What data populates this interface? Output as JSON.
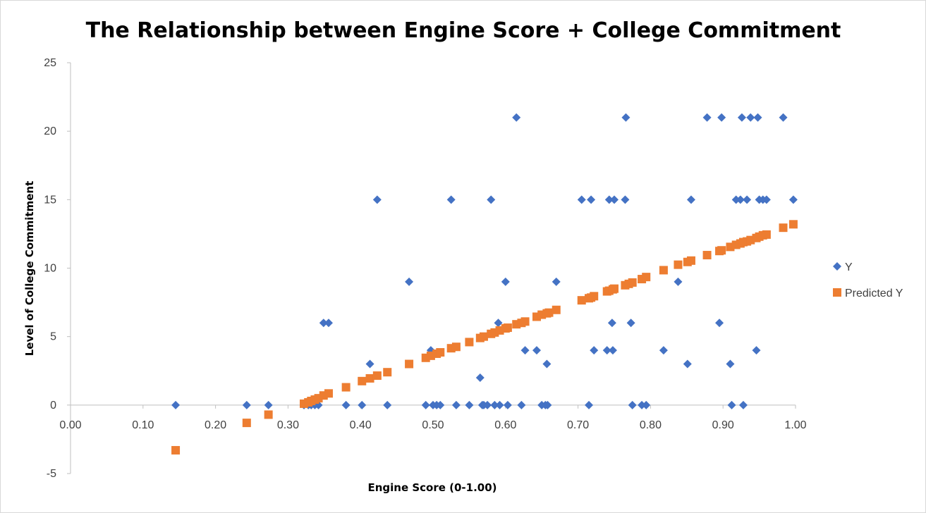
{
  "chart_data": {
    "type": "scatter",
    "title": "The Relationship between Engine Score + College Commitment",
    "xlabel": "Engine Score (0-1.00)",
    "ylabel": "Level of College Commitment",
    "xlim": [
      0,
      1
    ],
    "ylim": [
      -5,
      25
    ],
    "x_ticks": [
      "0.00",
      "0.10",
      "0.20",
      "0.30",
      "0.40",
      "0.50",
      "0.60",
      "0.70",
      "0.80",
      "0.90",
      "1.00"
    ],
    "y_ticks": [
      "-5",
      "0",
      "5",
      "10",
      "15",
      "20",
      "25"
    ],
    "grid": false,
    "legend_position": "right",
    "series": [
      {
        "name": "Y",
        "color": "#4472c4",
        "marker": "diamond",
        "points": [
          [
            0.145,
            0
          ],
          [
            0.243,
            0
          ],
          [
            0.273,
            0
          ],
          [
            0.322,
            0
          ],
          [
            0.328,
            0
          ],
          [
            0.332,
            0
          ],
          [
            0.337,
            0
          ],
          [
            0.342,
            0
          ],
          [
            0.349,
            6
          ],
          [
            0.356,
            6
          ],
          [
            0.38,
            0
          ],
          [
            0.402,
            0
          ],
          [
            0.413,
            3
          ],
          [
            0.423,
            15
          ],
          [
            0.437,
            0
          ],
          [
            0.467,
            9
          ],
          [
            0.49,
            0
          ],
          [
            0.497,
            4
          ],
          [
            0.5,
            0
          ],
          [
            0.505,
            0
          ],
          [
            0.51,
            0
          ],
          [
            0.525,
            15
          ],
          [
            0.532,
            0
          ],
          [
            0.55,
            0
          ],
          [
            0.565,
            2
          ],
          [
            0.568,
            0
          ],
          [
            0.57,
            0
          ],
          [
            0.575,
            0
          ],
          [
            0.58,
            15
          ],
          [
            0.585,
            0
          ],
          [
            0.59,
            6
          ],
          [
            0.592,
            0
          ],
          [
            0.6,
            9
          ],
          [
            0.603,
            0
          ],
          [
            0.615,
            21
          ],
          [
            0.622,
            0
          ],
          [
            0.627,
            4
          ],
          [
            0.643,
            4
          ],
          [
            0.65,
            0
          ],
          [
            0.655,
            0
          ],
          [
            0.657,
            3
          ],
          [
            0.658,
            0
          ],
          [
            0.67,
            9
          ],
          [
            0.705,
            15
          ],
          [
            0.715,
            0
          ],
          [
            0.718,
            15
          ],
          [
            0.722,
            4
          ],
          [
            0.74,
            4
          ],
          [
            0.743,
            15
          ],
          [
            0.747,
            6
          ],
          [
            0.748,
            4
          ],
          [
            0.75,
            15
          ],
          [
            0.765,
            15
          ],
          [
            0.766,
            21
          ],
          [
            0.773,
            6
          ],
          [
            0.775,
            0
          ],
          [
            0.788,
            0
          ],
          [
            0.794,
            0
          ],
          [
            0.838,
            9
          ],
          [
            0.818,
            4
          ],
          [
            0.851,
            3
          ],
          [
            0.856,
            15
          ],
          [
            0.878,
            21
          ],
          [
            0.895,
            6
          ],
          [
            0.898,
            21
          ],
          [
            0.91,
            3
          ],
          [
            0.912,
            0
          ],
          [
            0.918,
            15
          ],
          [
            0.924,
            15
          ],
          [
            0.926,
            21
          ],
          [
            0.928,
            0
          ],
          [
            0.933,
            15
          ],
          [
            0.938,
            21
          ],
          [
            0.946,
            4
          ],
          [
            0.948,
            21
          ],
          [
            0.95,
            15
          ],
          [
            0.955,
            15
          ],
          [
            0.96,
            15
          ],
          [
            0.983,
            21
          ],
          [
            0.997,
            15
          ]
        ]
      },
      {
        "name": "Predicted Y",
        "color": "#ed7d31",
        "marker": "square",
        "points": [
          [
            0.145,
            -3.3
          ],
          [
            0.243,
            -1.3
          ],
          [
            0.273,
            -0.7
          ],
          [
            0.322,
            0.1
          ],
          [
            0.328,
            0.2
          ],
          [
            0.332,
            0.3
          ],
          [
            0.337,
            0.4
          ],
          [
            0.342,
            0.5
          ],
          [
            0.349,
            0.7
          ],
          [
            0.356,
            0.85
          ],
          [
            0.38,
            1.3
          ],
          [
            0.402,
            1.75
          ],
          [
            0.413,
            1.95
          ],
          [
            0.423,
            2.15
          ],
          [
            0.437,
            2.4
          ],
          [
            0.467,
            3.0
          ],
          [
            0.49,
            3.45
          ],
          [
            0.497,
            3.6
          ],
          [
            0.505,
            3.75
          ],
          [
            0.51,
            3.85
          ],
          [
            0.525,
            4.15
          ],
          [
            0.532,
            4.25
          ],
          [
            0.55,
            4.6
          ],
          [
            0.565,
            4.9
          ],
          [
            0.57,
            5.0
          ],
          [
            0.58,
            5.2
          ],
          [
            0.585,
            5.3
          ],
          [
            0.592,
            5.45
          ],
          [
            0.6,
            5.6
          ],
          [
            0.603,
            5.65
          ],
          [
            0.615,
            5.9
          ],
          [
            0.622,
            6.0
          ],
          [
            0.627,
            6.1
          ],
          [
            0.643,
            6.45
          ],
          [
            0.65,
            6.6
          ],
          [
            0.657,
            6.7
          ],
          [
            0.66,
            6.75
          ],
          [
            0.67,
            6.95
          ],
          [
            0.705,
            7.65
          ],
          [
            0.715,
            7.8
          ],
          [
            0.718,
            7.85
          ],
          [
            0.722,
            7.95
          ],
          [
            0.74,
            8.3
          ],
          [
            0.743,
            8.35
          ],
          [
            0.748,
            8.45
          ],
          [
            0.75,
            8.5
          ],
          [
            0.765,
            8.75
          ],
          [
            0.77,
            8.85
          ],
          [
            0.775,
            8.95
          ],
          [
            0.788,
            9.2
          ],
          [
            0.794,
            9.35
          ],
          [
            0.818,
            9.85
          ],
          [
            0.838,
            10.25
          ],
          [
            0.851,
            10.45
          ],
          [
            0.856,
            10.55
          ],
          [
            0.878,
            10.95
          ],
          [
            0.895,
            11.25
          ],
          [
            0.898,
            11.3
          ],
          [
            0.91,
            11.55
          ],
          [
            0.918,
            11.7
          ],
          [
            0.924,
            11.8
          ],
          [
            0.928,
            11.9
          ],
          [
            0.933,
            11.95
          ],
          [
            0.938,
            12.05
          ],
          [
            0.946,
            12.2
          ],
          [
            0.95,
            12.3
          ],
          [
            0.955,
            12.4
          ],
          [
            0.96,
            12.45
          ],
          [
            0.983,
            12.95
          ],
          [
            0.997,
            13.2
          ]
        ]
      }
    ]
  }
}
